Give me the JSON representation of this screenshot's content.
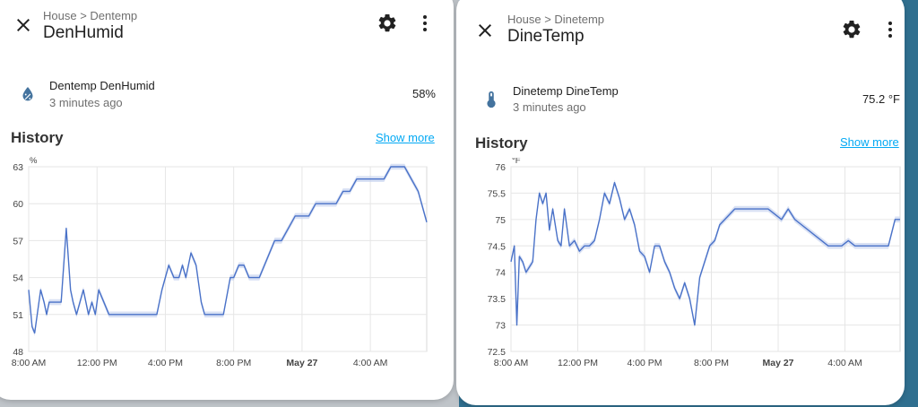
{
  "left": {
    "breadcrumb": "House > Dentemp",
    "title": "DenHumid",
    "entity": {
      "name": "Dentemp DenHumid",
      "time": "3 minutes ago",
      "state": "58%"
    },
    "history_title": "History",
    "show_more": "Show more",
    "icon": "water-percent-icon"
  },
  "right": {
    "breadcrumb": "House > Dinetemp",
    "title": "DineTemp",
    "entity": {
      "name": "Dinetemp DineTemp",
      "time": "3 minutes ago",
      "state": "75.2 °F"
    },
    "history_title": "History",
    "show_more": "Show more",
    "icon": "thermometer-icon"
  },
  "colors": {
    "line": "#4a72c8",
    "band": "#c9d4f0",
    "link": "#03a9f4",
    "grid": "#e6e6e6"
  },
  "chart_data": [
    {
      "type": "line",
      "unit_label": "%",
      "xlabel": "",
      "ylabel": "",
      "ylim": [
        48,
        63
      ],
      "yticks": [
        48,
        51,
        54,
        57,
        60,
        63
      ],
      "x_range_hours": [
        0,
        23.3
      ],
      "x_ticks": [
        {
          "label": "8:00 AM",
          "hour": 0,
          "bold": false
        },
        {
          "label": "12:00 PM",
          "hour": 4,
          "bold": false
        },
        {
          "label": "4:00 PM",
          "hour": 8,
          "bold": false
        },
        {
          "label": "8:00 PM",
          "hour": 12,
          "bold": false
        },
        {
          "label": "May 27",
          "hour": 16,
          "bold": true
        },
        {
          "label": "4:00 AM",
          "hour": 20,
          "bold": false
        }
      ],
      "series": [
        {
          "x": [
            0,
            0.2,
            0.35,
            0.5,
            0.7,
            0.9,
            1.05,
            1.2,
            1.4,
            1.6,
            1.9,
            2.2,
            2.45,
            2.6,
            2.8,
            3.0,
            3.2,
            3.5,
            3.7,
            3.9,
            4.1,
            4.4,
            4.7,
            5.0,
            5.2,
            5.5,
            5.8,
            6.0,
            6.3,
            6.6,
            6.9,
            7.2,
            7.5,
            7.8,
            8.0,
            8.2,
            8.5,
            8.8,
            9.0,
            9.2,
            9.5,
            9.8,
            10.1,
            10.3,
            10.6,
            11.0,
            11.4,
            11.8,
            12.0,
            12.3,
            12.6,
            12.9,
            13.2,
            13.5,
            13.8,
            14.1,
            14.4,
            14.8,
            15.2,
            15.6,
            16.0,
            16.4,
            16.8,
            17.2,
            17.6,
            18.0,
            18.4,
            18.8,
            19.2,
            19.6,
            20.0,
            20.4,
            20.8,
            21.2,
            21.6,
            22.0,
            22.4,
            22.8,
            23.0,
            23.3
          ],
          "y": [
            53,
            50,
            49.5,
            51,
            53,
            52,
            51,
            52,
            52,
            52,
            52,
            58,
            53,
            52,
            51,
            52,
            53,
            51,
            52,
            51,
            53,
            52,
            51,
            51,
            51,
            51,
            51,
            51,
            51,
            51,
            51,
            51,
            51,
            53,
            54,
            55,
            54,
            54,
            55,
            54,
            56,
            55,
            52,
            51,
            51,
            51,
            51,
            54,
            54,
            55,
            55,
            54,
            54,
            54,
            55,
            56,
            57,
            57,
            58,
            59,
            59,
            59,
            60,
            60,
            60,
            60,
            61,
            61,
            62,
            62,
            62,
            62,
            62,
            63,
            63,
            63,
            62,
            61,
            60,
            58.5
          ]
        }
      ]
    },
    {
      "type": "line",
      "unit_label": "°F",
      "xlabel": "",
      "ylabel": "",
      "ylim": [
        72.5,
        76
      ],
      "yticks": [
        72.5,
        73,
        73.5,
        74,
        74.5,
        75,
        75.5,
        76
      ],
      "x_range_hours": [
        0,
        23.3
      ],
      "x_ticks": [
        {
          "label": "8:00 AM",
          "hour": 0,
          "bold": false
        },
        {
          "label": "12:00 PM",
          "hour": 4,
          "bold": false
        },
        {
          "label": "4:00 PM",
          "hour": 8,
          "bold": false
        },
        {
          "label": "8:00 PM",
          "hour": 12,
          "bold": false
        },
        {
          "label": "May 27",
          "hour": 16,
          "bold": true
        },
        {
          "label": "4:00 AM",
          "hour": 20,
          "bold": false
        }
      ],
      "series": [
        {
          "x": [
            0,
            0.2,
            0.35,
            0.5,
            0.7,
            0.9,
            1.1,
            1.3,
            1.5,
            1.7,
            1.9,
            2.1,
            2.3,
            2.5,
            2.8,
            3.0,
            3.2,
            3.5,
            3.8,
            4.1,
            4.4,
            4.7,
            5.0,
            5.3,
            5.6,
            5.9,
            6.2,
            6.5,
            6.8,
            7.1,
            7.4,
            7.7,
            8.0,
            8.3,
            8.6,
            8.9,
            9.2,
            9.5,
            9.8,
            10.1,
            10.4,
            10.7,
            11.0,
            11.3,
            11.6,
            11.9,
            12.2,
            12.5,
            12.8,
            13.1,
            13.4,
            13.7,
            14.0,
            14.3,
            14.6,
            15.0,
            15.4,
            15.8,
            16.2,
            16.6,
            17.0,
            17.4,
            17.8,
            18.2,
            18.6,
            19.0,
            19.4,
            19.8,
            20.2,
            20.6,
            21.0,
            21.4,
            21.8,
            22.2,
            22.6,
            23.0,
            23.3
          ],
          "y": [
            74.2,
            74.5,
            73.0,
            74.3,
            74.2,
            74.0,
            74.1,
            74.2,
            75.0,
            75.5,
            75.3,
            75.5,
            74.8,
            75.2,
            74.6,
            74.5,
            75.2,
            74.5,
            74.6,
            74.4,
            74.5,
            74.5,
            74.6,
            75.0,
            75.5,
            75.3,
            75.7,
            75.4,
            75.0,
            75.2,
            74.9,
            74.4,
            74.3,
            74.0,
            74.5,
            74.5,
            74.2,
            74.0,
            73.7,
            73.5,
            73.8,
            73.5,
            73.0,
            73.9,
            74.2,
            74.5,
            74.6,
            74.9,
            75.0,
            75.1,
            75.2,
            75.2,
            75.2,
            75.2,
            75.2,
            75.2,
            75.2,
            75.1,
            75.0,
            75.2,
            75.0,
            74.9,
            74.8,
            74.7,
            74.6,
            74.5,
            74.5,
            74.5,
            74.6,
            74.5,
            74.5,
            74.5,
            74.5,
            74.5,
            74.5,
            75.0,
            75.0
          ]
        }
      ]
    }
  ]
}
